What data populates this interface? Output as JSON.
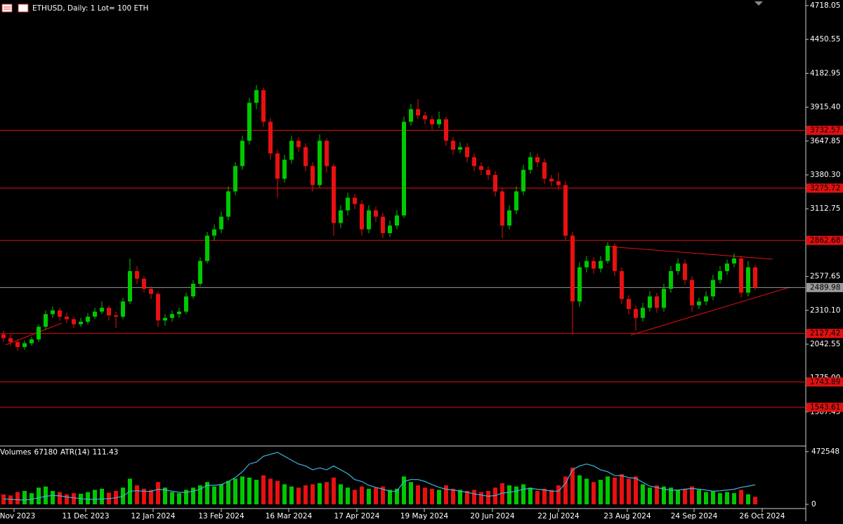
{
  "chart_data": {
    "type": "candlestick",
    "title": "ETHUSD, Daily:  1 Lot= 100 ETH",
    "ylim": [
      1243.25,
      4762.46
    ],
    "yticks": [
      4718.05,
      4450.55,
      4182.95,
      {
        "value": 3915.4,
        "label": "3915.40"
      },
      3647.85,
      {
        "value": 3380.3,
        "label": "3380.30"
      },
      3112.75,
      2577.65,
      {
        "value": 2310.1,
        "label": "2310.10"
      },
      2042.55,
      {
        "value": 1775,
        "label": "1775.00"
      },
      1507.45
    ],
    "xlim": [
      -0.5,
      114.2
    ],
    "xticks": [
      {
        "value": 1.5,
        "label": "9 Nov 2023"
      },
      {
        "value": 11.7,
        "label": "11 Dec 2023"
      },
      {
        "value": 21.3,
        "label": "12 Jan 2024"
      },
      {
        "value": 31,
        "label": "13 Feb 2024"
      },
      {
        "value": 40.6,
        "label": "16 Mar 2024"
      },
      {
        "value": 50.3,
        "label": "17 Apr 2024"
      },
      {
        "value": 59.9,
        "label": "19 May 2024"
      },
      {
        "value": 69.6,
        "label": "20 Jun 2024"
      },
      {
        "value": 79,
        "label": "22 Jul 2024"
      },
      {
        "value": 88.8,
        "label": "23 Aug 2024"
      },
      {
        "value": 98.3,
        "label": "24 Sep 2024"
      },
      {
        "value": 108,
        "label": "26 Oct 2024"
      }
    ],
    "levels": [
      {
        "value": 3732.57,
        "color": "#e01010"
      },
      {
        "value": 3275.72,
        "color": "#e01010"
      },
      {
        "value": 2862.68,
        "color": "#e01010"
      },
      {
        "value": 2489.98,
        "color": "#9a9a9a"
      },
      {
        "value": 2127.42,
        "color": "#e01010"
      },
      {
        "value": 1743.89,
        "color": "#e01010"
      },
      {
        "value": 1543.61,
        "color": "#e01010"
      }
    ],
    "up_color": "#00c800",
    "down_color": "#e81010",
    "ohlc": [
      [
        2120,
        2150,
        2060,
        2090
      ],
      [
        2090,
        2120,
        2030,
        2060
      ],
      [
        2060,
        2080,
        1990,
        2020
      ],
      [
        2020,
        2070,
        2000,
        2050
      ],
      [
        2050,
        2100,
        2030,
        2080
      ],
      [
        2080,
        2200,
        2060,
        2180
      ],
      [
        2180,
        2310,
        2160,
        2280
      ],
      [
        2280,
        2340,
        2250,
        2310
      ],
      [
        2310,
        2330,
        2230,
        2260
      ],
      [
        2260,
        2290,
        2210,
        2240
      ],
      [
        2240,
        2260,
        2170,
        2200
      ],
      [
        2200,
        2250,
        2180,
        2220
      ],
      [
        2220,
        2290,
        2200,
        2260
      ],
      [
        2260,
        2330,
        2240,
        2300
      ],
      [
        2300,
        2380,
        2280,
        2330
      ],
      [
        2330,
        2350,
        2230,
        2270
      ],
      [
        2270,
        2300,
        2170,
        2260
      ],
      [
        2260,
        2410,
        2240,
        2380
      ],
      [
        2380,
        2720,
        2360,
        2620
      ],
      [
        2620,
        2660,
        2520,
        2560
      ],
      [
        2560,
        2580,
        2450,
        2480
      ],
      [
        2480,
        2500,
        2400,
        2440
      ],
      [
        2440,
        2460,
        2180,
        2230
      ],
      [
        2230,
        2280,
        2190,
        2250
      ],
      [
        2250,
        2310,
        2220,
        2280
      ],
      [
        2280,
        2330,
        2250,
        2300
      ],
      [
        2300,
        2450,
        2280,
        2420
      ],
      [
        2420,
        2550,
        2400,
        2520
      ],
      [
        2520,
        2730,
        2500,
        2700
      ],
      [
        2700,
        2930,
        2680,
        2900
      ],
      [
        2900,
        2990,
        2860,
        2950
      ],
      [
        2950,
        3090,
        2920,
        3050
      ],
      [
        3050,
        3290,
        3020,
        3250
      ],
      [
        3250,
        3480,
        3220,
        3450
      ],
      [
        3450,
        3690,
        3420,
        3650
      ],
      [
        3650,
        3990,
        3620,
        3950
      ],
      [
        3950,
        4090,
        3900,
        4050
      ],
      [
        4050,
        4070,
        3760,
        3800
      ],
      [
        3800,
        3830,
        3500,
        3550
      ],
      [
        3550,
        3580,
        3200,
        3350
      ],
      [
        3350,
        3540,
        3320,
        3500
      ],
      [
        3500,
        3690,
        3470,
        3650
      ],
      [
        3650,
        3680,
        3560,
        3600
      ],
      [
        3600,
        3630,
        3410,
        3450
      ],
      [
        3450,
        3480,
        3250,
        3300
      ],
      [
        3300,
        3700,
        3280,
        3650
      ],
      [
        3650,
        3670,
        3400,
        3450
      ],
      [
        3450,
        3470,
        2900,
        3000
      ],
      [
        3000,
        3140,
        2960,
        3100
      ],
      [
        3100,
        3240,
        3060,
        3200
      ],
      [
        3200,
        3230,
        3110,
        3150
      ],
      [
        3150,
        3180,
        2900,
        2950
      ],
      [
        2950,
        3140,
        2920,
        3100
      ],
      [
        3100,
        3130,
        3010,
        3050
      ],
      [
        3050,
        3080,
        2880,
        2920
      ],
      [
        2920,
        3020,
        2890,
        2980
      ],
      [
        2980,
        3100,
        2950,
        3060
      ],
      [
        3060,
        3840,
        3040,
        3800
      ],
      [
        3800,
        3940,
        3770,
        3900
      ],
      [
        3900,
        3980,
        3820,
        3850
      ],
      [
        3850,
        3880,
        3780,
        3820
      ],
      [
        3820,
        3850,
        3740,
        3780
      ],
      [
        3780,
        3880,
        3750,
        3820
      ],
      [
        3820,
        3840,
        3610,
        3650
      ],
      [
        3650,
        3680,
        3540,
        3580
      ],
      [
        3580,
        3640,
        3550,
        3600
      ],
      [
        3600,
        3630,
        3480,
        3520
      ],
      [
        3520,
        3550,
        3410,
        3450
      ],
      [
        3450,
        3480,
        3380,
        3420
      ],
      [
        3420,
        3450,
        3340,
        3380
      ],
      [
        3380,
        3410,
        3210,
        3250
      ],
      [
        3250,
        3280,
        2880,
        2980
      ],
      [
        2980,
        3140,
        2950,
        3100
      ],
      [
        3100,
        3290,
        3070,
        3250
      ],
      [
        3250,
        3460,
        3220,
        3420
      ],
      [
        3420,
        3560,
        3390,
        3520
      ],
      [
        3520,
        3550,
        3440,
        3480
      ],
      [
        3480,
        3510,
        3310,
        3350
      ],
      [
        3350,
        3380,
        3290,
        3330
      ],
      [
        3330,
        3400,
        3260,
        3300
      ],
      [
        3300,
        3330,
        2860,
        2900
      ],
      [
        2900,
        2930,
        2120,
        2380
      ],
      [
        2380,
        2690,
        2340,
        2650
      ],
      [
        2650,
        2740,
        2610,
        2700
      ],
      [
        2700,
        2730,
        2600,
        2640
      ],
      [
        2640,
        2740,
        2610,
        2700
      ],
      [
        2700,
        2850,
        2680,
        2820
      ],
      [
        2820,
        2840,
        2580,
        2620
      ],
      [
        2620,
        2650,
        2360,
        2400
      ],
      [
        2400,
        2430,
        2280,
        2320
      ],
      [
        2320,
        2350,
        2150,
        2250
      ],
      [
        2250,
        2370,
        2220,
        2330
      ],
      [
        2330,
        2460,
        2300,
        2420
      ],
      [
        2420,
        2450,
        2290,
        2330
      ],
      [
        2330,
        2520,
        2300,
        2480
      ],
      [
        2480,
        2660,
        2450,
        2620
      ],
      [
        2620,
        2720,
        2590,
        2680
      ],
      [
        2680,
        2710,
        2510,
        2550
      ],
      [
        2550,
        2580,
        2300,
        2350
      ],
      [
        2350,
        2410,
        2320,
        2380
      ],
      [
        2380,
        2460,
        2350,
        2420
      ],
      [
        2420,
        2590,
        2390,
        2550
      ],
      [
        2550,
        2660,
        2520,
        2620
      ],
      [
        2620,
        2710,
        2590,
        2680
      ],
      [
        2680,
        2760,
        2650,
        2720
      ],
      [
        2720,
        2740,
        2410,
        2450
      ],
      [
        2450,
        2700,
        2420,
        2650
      ],
      [
        2650,
        2670,
        2470,
        2490
      ]
    ],
    "volume_label": "Volumes",
    "vlim": [
      0,
      472548
    ],
    "vticks": [
      472548,
      0
    ],
    "volumes": [
      90000,
      80000,
      110000,
      120000,
      100000,
      150000,
      160000,
      120000,
      110000,
      90000,
      100000,
      95000,
      110000,
      130000,
      140000,
      105000,
      120000,
      150000,
      230000,
      170000,
      140000,
      130000,
      200000,
      150000,
      110000,
      100000,
      130000,
      150000,
      170000,
      200000,
      160000,
      180000,
      210000,
      230000,
      250000,
      240000,
      220000,
      260000,
      230000,
      210000,
      180000,
      160000,
      150000,
      170000,
      180000,
      190000,
      200000,
      240000,
      180000,
      150000,
      130000,
      160000,
      140000,
      150000,
      160000,
      130000,
      140000,
      250000,
      200000,
      170000,
      150000,
      140000,
      130000,
      170000,
      140000,
      130000,
      120000,
      130000,
      110000,
      120000,
      150000,
      190000,
      170000,
      160000,
      180000,
      150000,
      120000,
      140000,
      130000,
      170000,
      250000,
      330000,
      260000,
      230000,
      200000,
      220000,
      250000,
      240000,
      270000,
      230000,
      250000,
      180000,
      150000,
      170000,
      160000,
      150000,
      130000,
      140000,
      160000,
      130000,
      110000,
      120000,
      100000,
      110000,
      100000,
      130000,
      90000,
      67180
    ],
    "atr_label": "ATR(14)",
    "atr_color": "#3fb6e0",
    "atr": [
      75,
      74,
      73,
      72,
      74,
      78,
      82,
      84,
      83,
      80,
      78,
      76,
      74,
      74,
      75,
      76,
      78,
      82,
      95,
      96,
      95,
      94,
      100,
      98,
      95,
      92,
      92,
      95,
      100,
      110,
      110,
      112,
      120,
      130,
      145,
      165,
      170,
      185,
      190,
      195,
      185,
      175,
      165,
      160,
      150,
      155,
      150,
      160,
      150,
      140,
      125,
      120,
      110,
      105,
      100,
      95,
      95,
      120,
      125,
      125,
      120,
      112,
      105,
      100,
      98,
      95,
      92,
      88,
      85,
      82,
      84,
      90,
      92,
      95,
      100,
      102,
      100,
      98,
      95,
      95,
      115,
      150,
      160,
      165,
      160,
      150,
      145,
      135,
      135,
      130,
      128,
      118,
      108,
      105,
      100,
      98,
      98,
      100,
      102,
      100,
      98,
      95,
      96,
      98,
      100,
      105,
      108,
      111.43
    ]
  }
}
